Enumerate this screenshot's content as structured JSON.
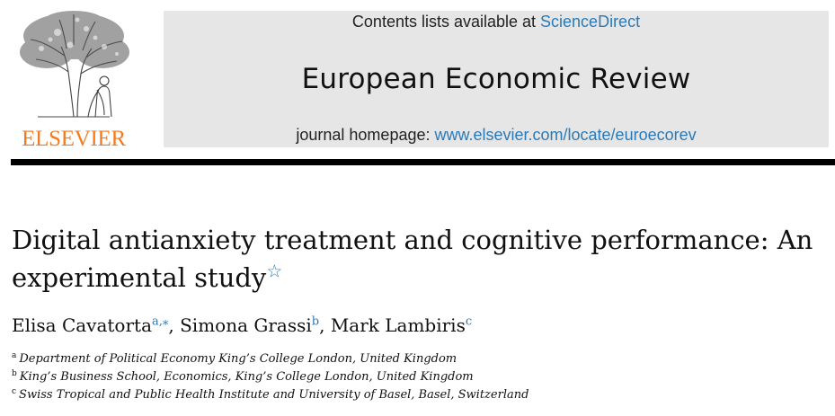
{
  "logo": {
    "wordmark": "ELSEVIER",
    "icon": "elsevier-tree-icon",
    "color": "#f47a20"
  },
  "banner": {
    "contents_prefix": "Contents lists available at ",
    "contents_link": "ScienceDirect",
    "journal_title": "European Economic Review",
    "homepage_prefix": "journal homepage: ",
    "homepage_url": "www.elsevier.com/locate/euroecorev",
    "link_color": "#2a7ab7",
    "background": "#e6e6e6"
  },
  "article": {
    "title_line1": "Digital antianxiety treatment and cognitive performance: An",
    "title_line2": "experimental study",
    "title_note_mark": "☆"
  },
  "authors": [
    {
      "name": "Elisa Cavatorta",
      "marks": "a,⁎"
    },
    {
      "name": "Simona Grassi",
      "marks": "b"
    },
    {
      "name": "Mark Lambiris",
      "marks": "c"
    }
  ],
  "affiliations": [
    {
      "mark": "a",
      "text": "Department of Political Economy King’s College London, United Kingdom"
    },
    {
      "mark": "b",
      "text": "King’s Business School, Economics, King’s College London, United Kingdom"
    },
    {
      "mark": "c",
      "text": "Swiss Tropical and Public Health Institute and University of Basel, Basel, Switzerland"
    }
  ]
}
